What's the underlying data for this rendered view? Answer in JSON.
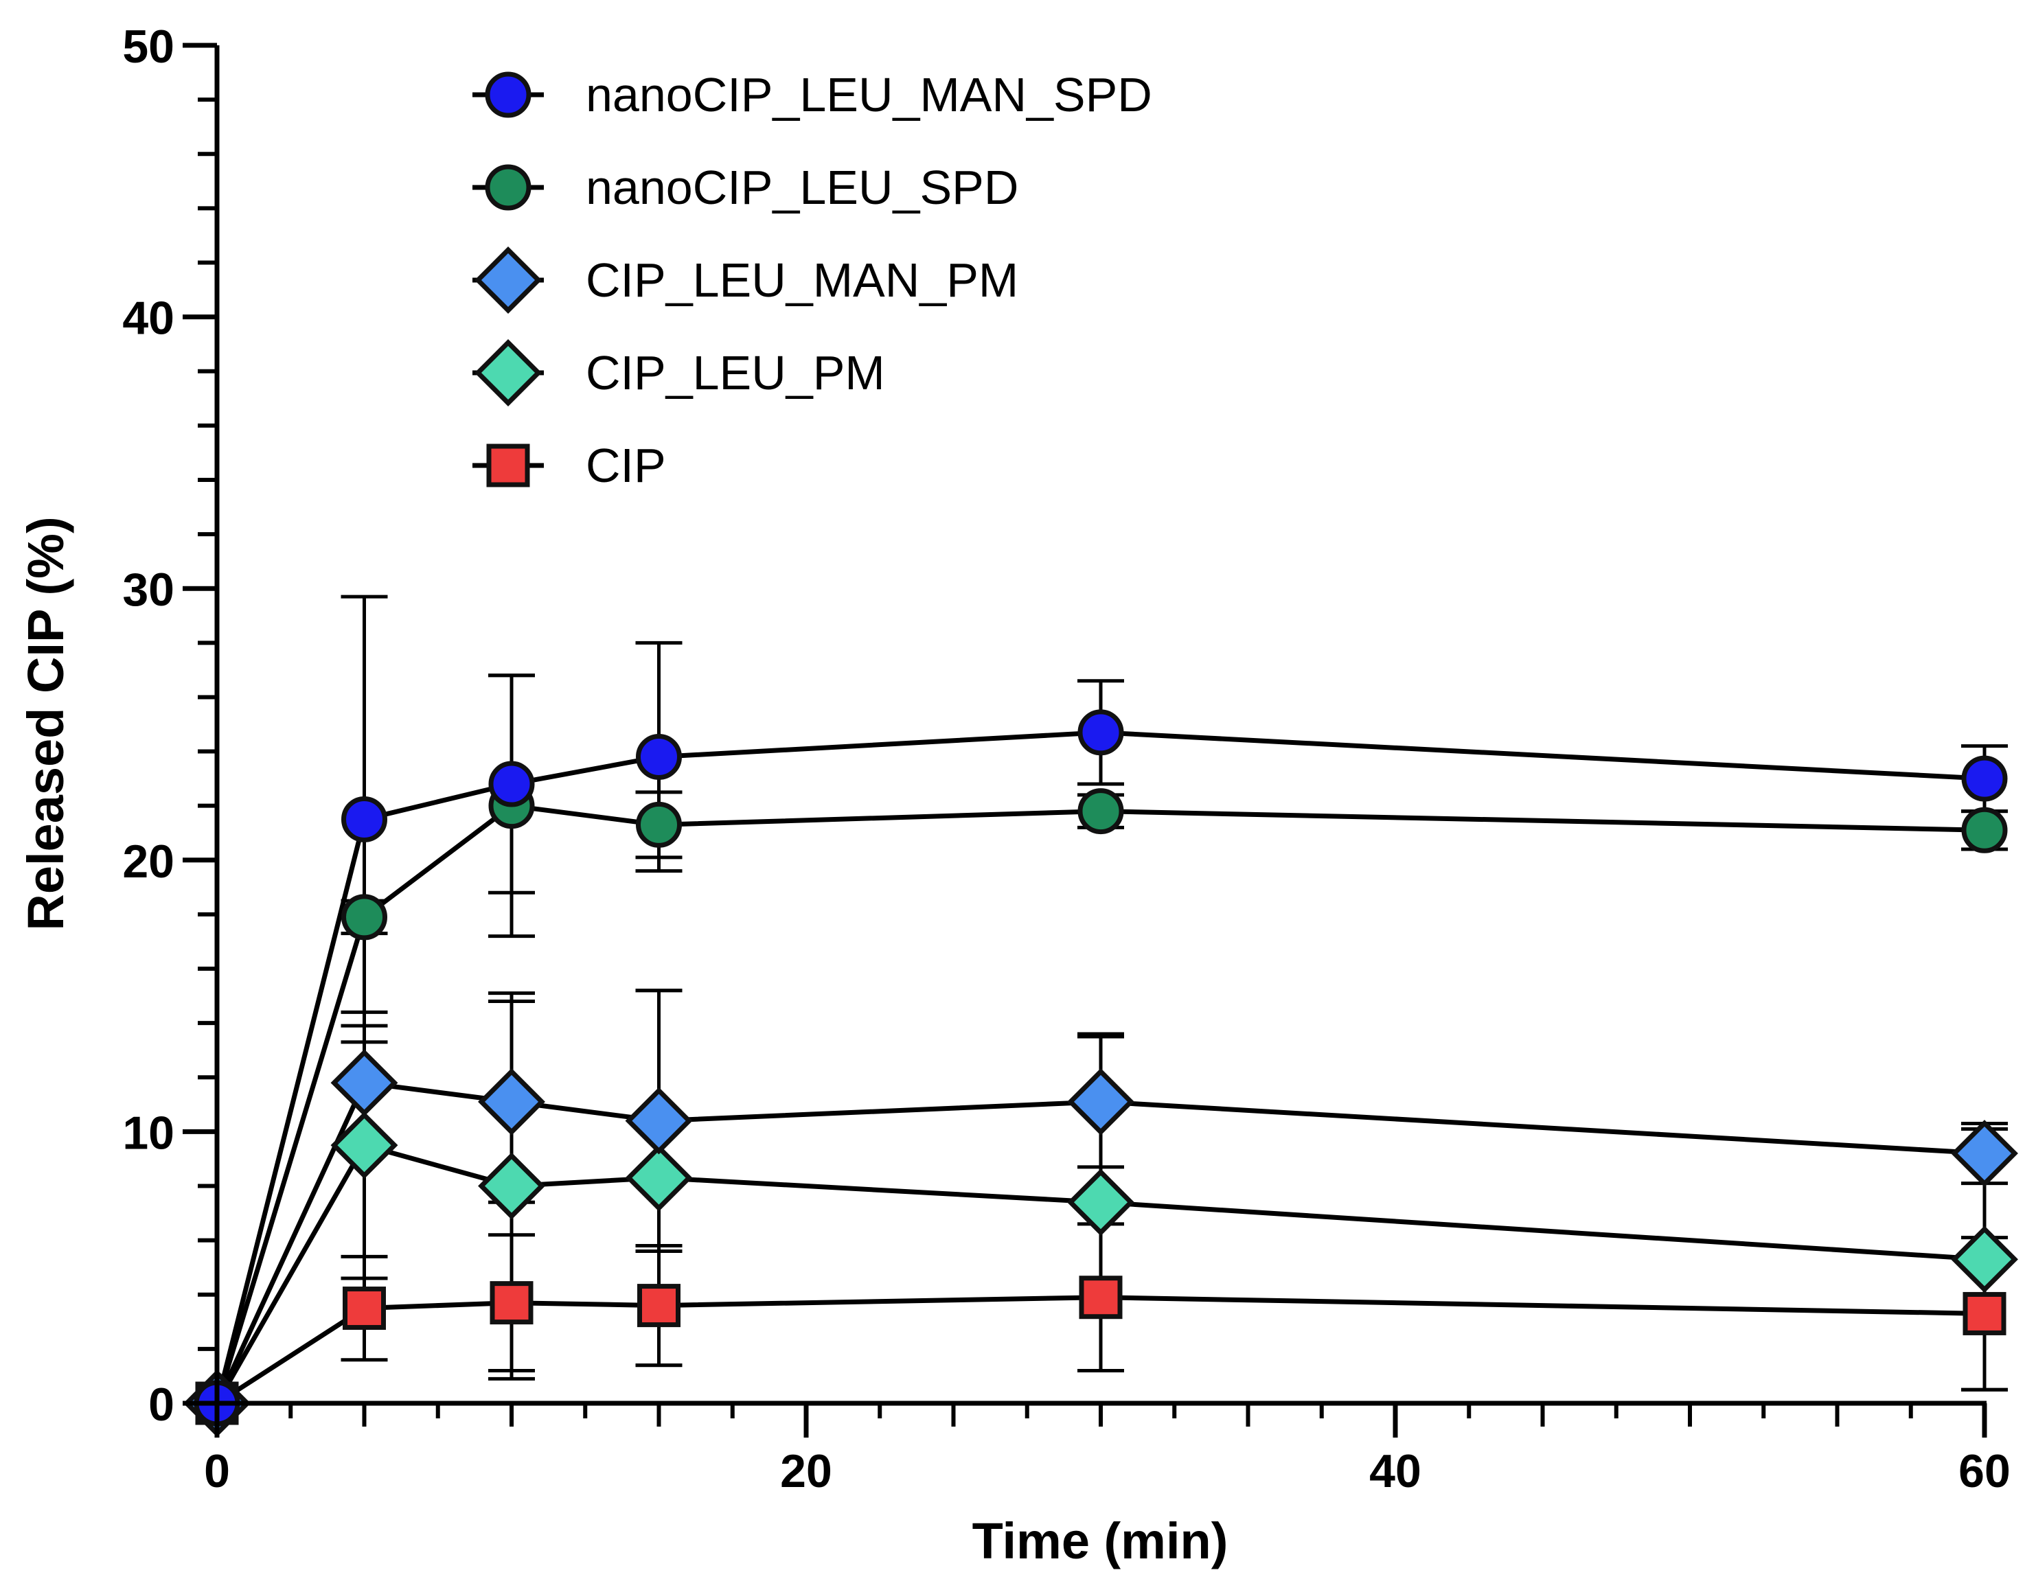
{
  "chart_data": {
    "type": "line",
    "title": "",
    "xlabel": "Time (min)",
    "ylabel": "Released CIP (%)",
    "xlim": [
      0,
      60
    ],
    "ylim": [
      0,
      50
    ],
    "x_ticks": [
      0,
      20,
      40,
      60
    ],
    "y_ticks": [
      0,
      10,
      20,
      30,
      40,
      50
    ],
    "x_tick_labels": [
      "0",
      "20",
      "40",
      "60"
    ],
    "y_tick_labels": [
      "0",
      "10",
      "20",
      "30",
      "40",
      "50"
    ],
    "grid": false,
    "legend_position": "top-left",
    "x": [
      0,
      5,
      10,
      15,
      30,
      60
    ],
    "series": [
      {
        "name": "nanoCIP_LEU_MAN_SPD",
        "marker": "circle",
        "color": "#1a1af0",
        "values": [
          0,
          21.5,
          22.8,
          23.8,
          24.7,
          23.0
        ],
        "errors": [
          0,
          8.2,
          4.0,
          4.2,
          1.9,
          1.2
        ]
      },
      {
        "name": "nanoCIP_LEU_SPD",
        "marker": "circle",
        "color": "#1e8c5a",
        "values": [
          0,
          17.9,
          22.0,
          21.3,
          21.8,
          21.1
        ],
        "errors": [
          0,
          0.6,
          4.8,
          1.2,
          0.6,
          0.7
        ]
      },
      {
        "name": "CIP_LEU_MAN_PM",
        "marker": "diamond",
        "color": "#4a90f0",
        "values": [
          0,
          11.8,
          11.1,
          10.4,
          11.1,
          9.2
        ],
        "errors": [
          0,
          2.1,
          3.7,
          4.8,
          2.4,
          1.1
        ]
      },
      {
        "name": "CIP_LEU_PM",
        "marker": "diamond",
        "color": "#4dd9b0",
        "values": [
          0,
          9.5,
          8.0,
          8.3,
          7.4,
          5.3
        ],
        "errors": [
          0,
          4.9,
          7.1,
          6.9,
          6.2,
          4.8
        ]
      },
      {
        "name": "CIP",
        "marker": "square",
        "color": "#ee3b3b",
        "values": [
          0,
          3.5,
          3.7,
          3.6,
          3.9,
          3.3
        ],
        "errors": [
          0,
          1.9,
          2.5,
          2.2,
          2.7,
          2.8
        ]
      }
    ]
  }
}
